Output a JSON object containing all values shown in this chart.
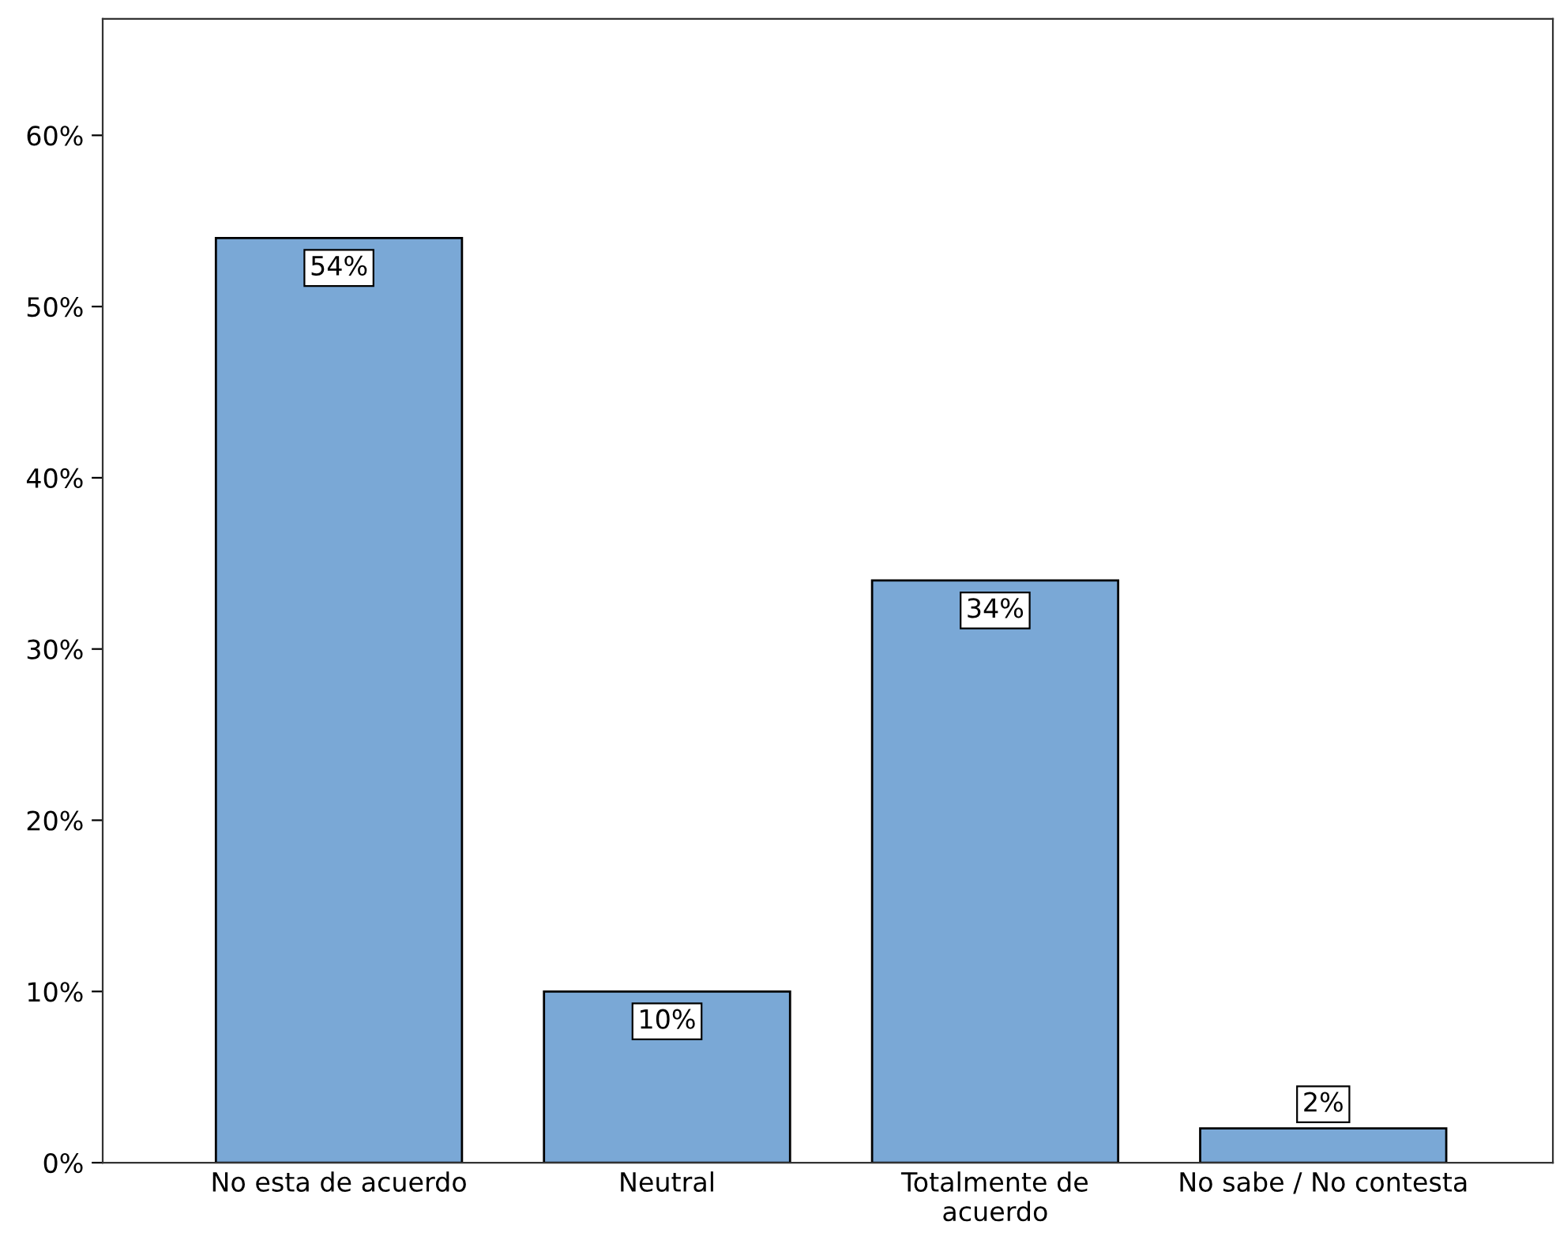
{
  "chart_data": {
    "type": "bar",
    "categories": [
      "No esta de acuerdo",
      "Neutral",
      "Totalmente de\nacuerdo",
      "No sabe / No contesta"
    ],
    "values": [
      54,
      10,
      34,
      2
    ],
    "value_labels": [
      "54%",
      "10%",
      "34%",
      "2%"
    ],
    "color": "#7aa8d6",
    "ylim": [
      0,
      66.8
    ],
    "yticks": [
      {
        "value": 0,
        "label": "0%"
      },
      {
        "value": 10,
        "label": "10%"
      },
      {
        "value": 20,
        "label": "20%"
      },
      {
        "value": 30,
        "label": "30%"
      },
      {
        "value": 40,
        "label": "40%"
      },
      {
        "value": 50,
        "label": "50%"
      },
      {
        "value": 60,
        "label": "60%"
      }
    ],
    "grid": false,
    "legend": false
  }
}
